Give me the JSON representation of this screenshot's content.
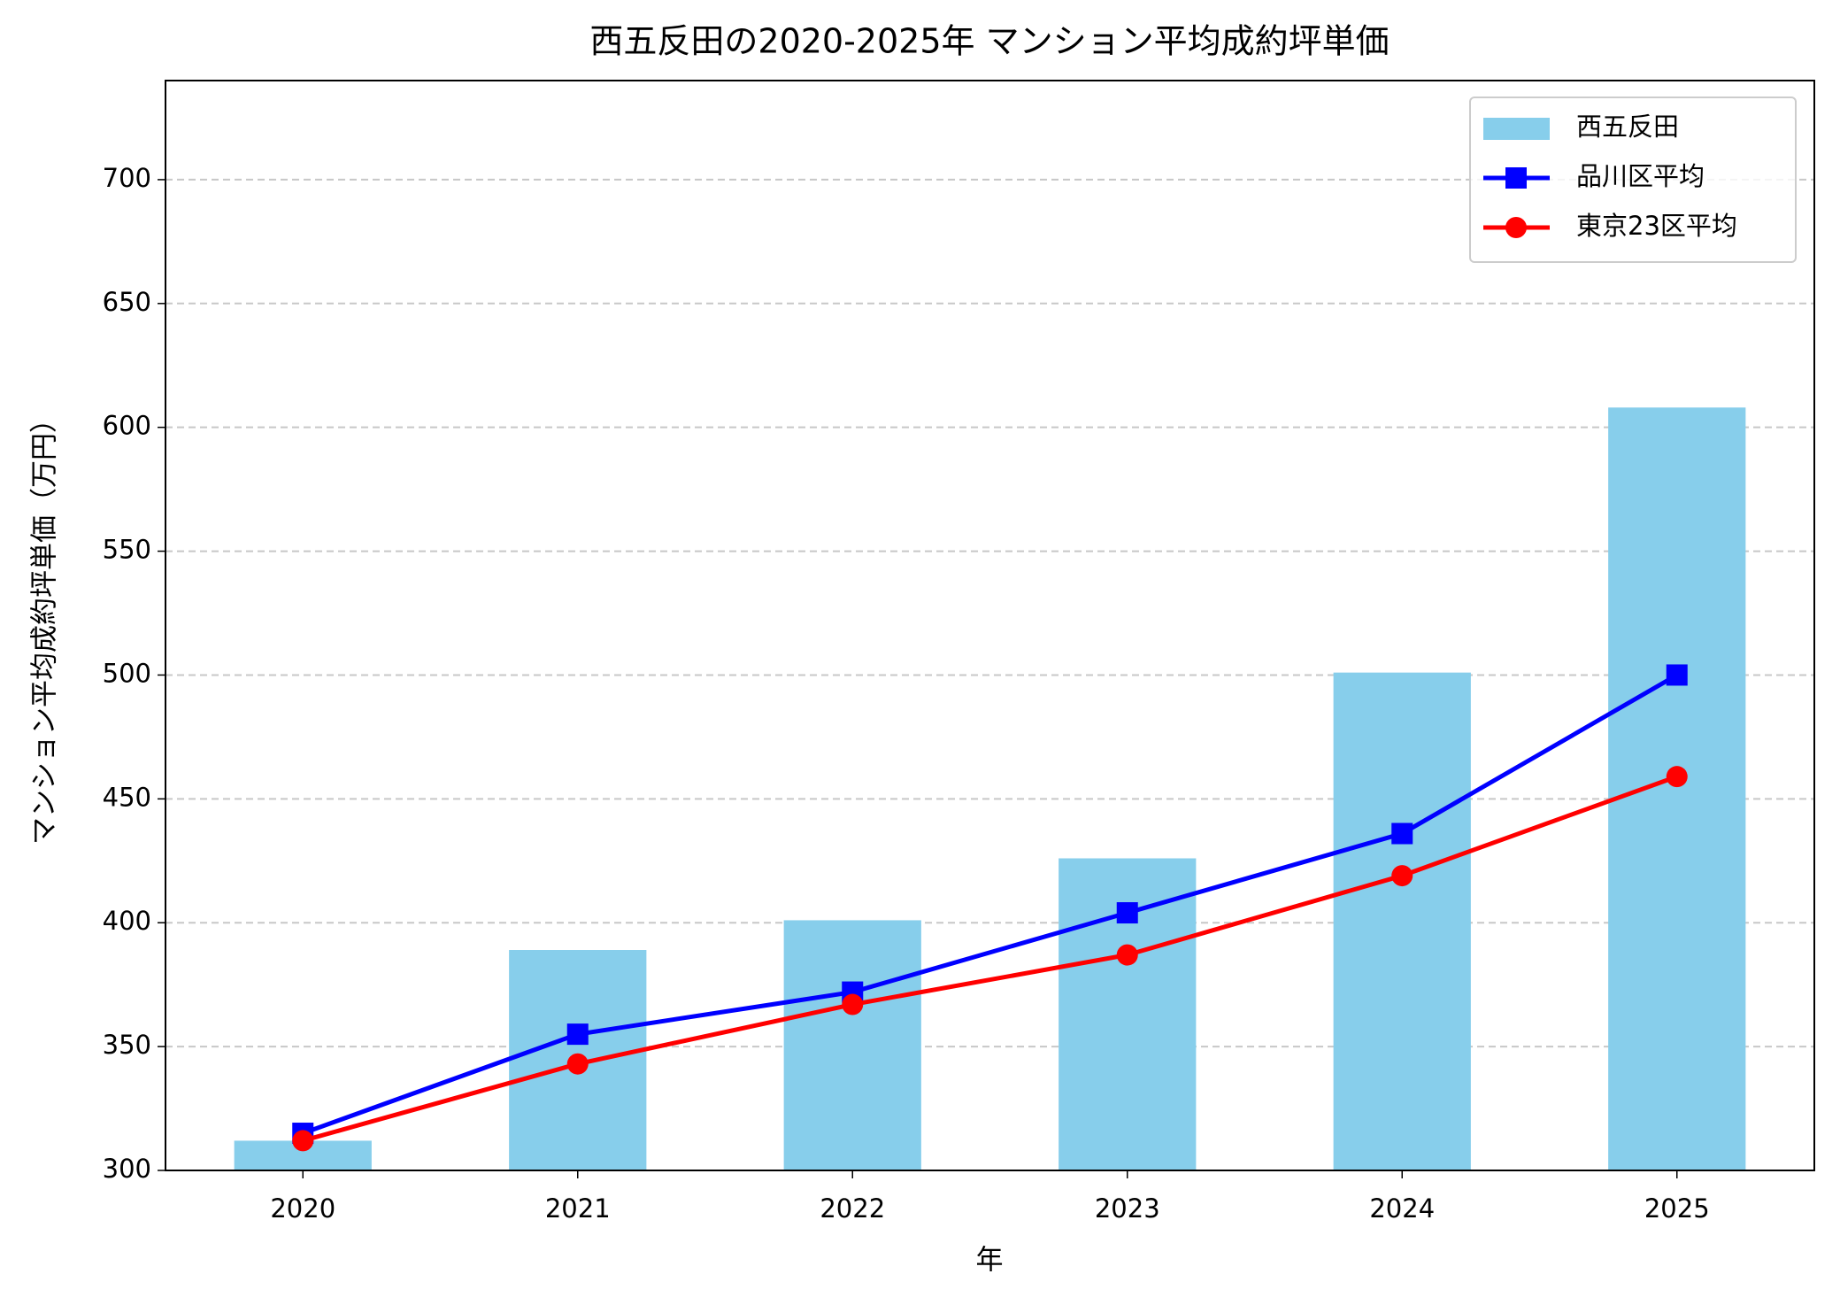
{
  "chart_data": {
    "type": "bar",
    "title": "西五反田の2020-2025年 マンション平均成約坪単価",
    "xlabel": "年",
    "ylabel": "マンション平均成約坪単価（万円）",
    "categories": [
      "2020",
      "2021",
      "2022",
      "2023",
      "2024",
      "2025"
    ],
    "series": [
      {
        "name": "西五反田",
        "type": "bar",
        "color": "#87ceeb",
        "values": [
          312,
          389,
          401,
          426,
          501,
          608
        ]
      },
      {
        "name": "品川区平均",
        "type": "line",
        "marker": "square",
        "color": "#0000ff",
        "values": [
          315,
          355,
          372,
          404,
          436,
          500
        ]
      },
      {
        "name": "東京23区平均",
        "type": "line",
        "marker": "circle",
        "color": "#ff0000",
        "values": [
          312,
          343,
          367,
          387,
          419,
          459
        ]
      }
    ],
    "ylim": [
      300,
      740
    ],
    "yticks": [
      300,
      350,
      400,
      450,
      500,
      550,
      600,
      650,
      700
    ],
    "grid": true,
    "legend": "upper right"
  }
}
